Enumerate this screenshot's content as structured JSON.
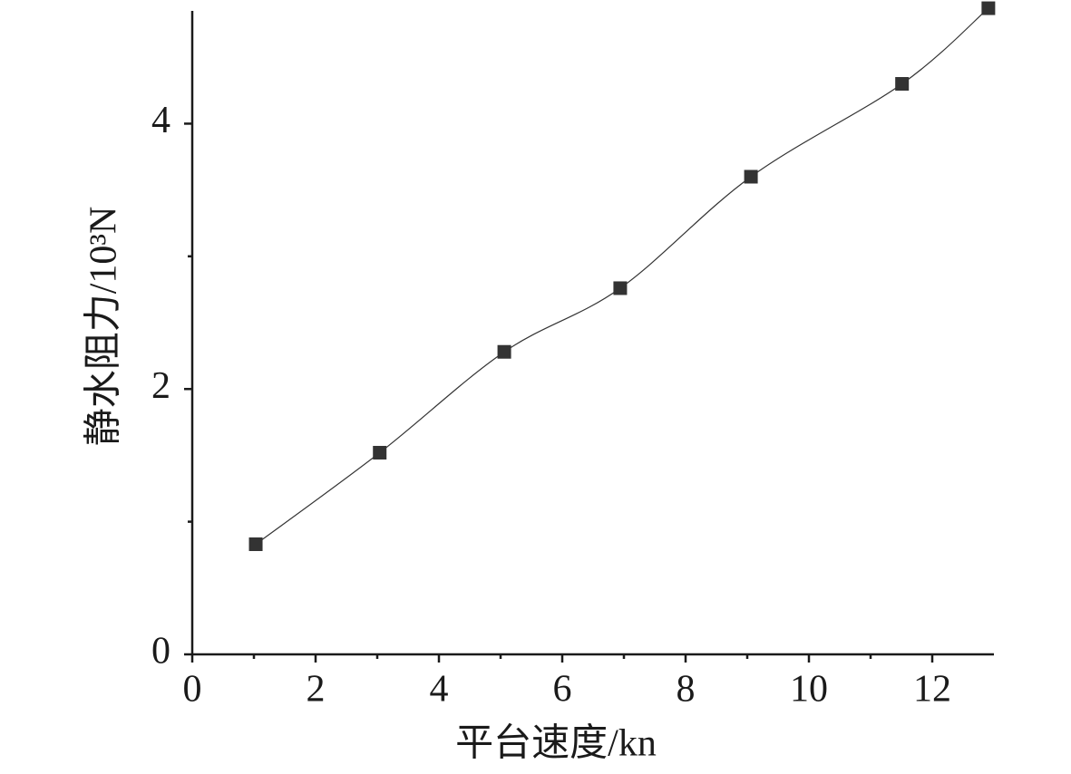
{
  "chart_data": {
    "type": "line",
    "x_label": "平台速度/kn",
    "y_label": "静水阻力/10³N",
    "x": [
      1.03,
      3.04,
      5.06,
      6.94,
      9.06,
      11.51,
      12.91
    ],
    "series": [
      {
        "color": "#333333",
        "values": [
          0.83,
          1.52,
          2.28,
          2.76,
          3.6,
          4.3,
          4.87
        ]
      }
    ],
    "xlim": [
      0,
      13
    ],
    "ylim": [
      0,
      4.85
    ],
    "xticks": [
      0,
      2,
      4,
      6,
      8,
      10,
      12
    ],
    "yticks": [
      0,
      2,
      4
    ],
    "x_minor_ticks": [
      1,
      3,
      5,
      7,
      9,
      11
    ],
    "y_minor_ticks": [
      1,
      3
    ]
  }
}
